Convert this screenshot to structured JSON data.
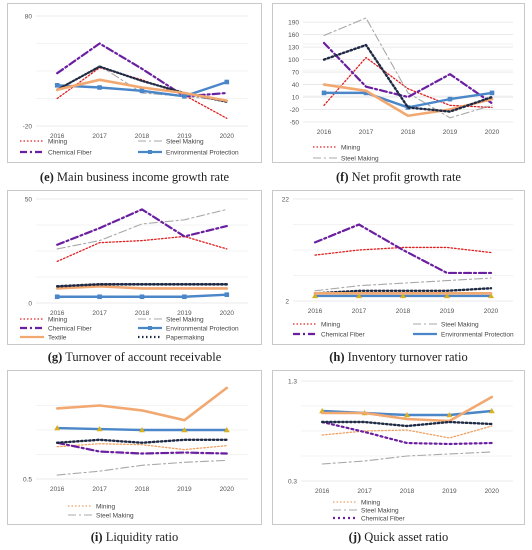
{
  "figure": {
    "panels": [
      {
        "id": "e",
        "letter": "(e)",
        "caption": "Main business income growth rate"
      },
      {
        "id": "f",
        "letter": "(f)",
        "caption": "Net profit growth rate"
      },
      {
        "id": "g",
        "letter": "(g)",
        "caption": "Turnover of account receivable"
      },
      {
        "id": "h",
        "letter": "(h)",
        "caption": "Inventory turnover ratio"
      },
      {
        "id": "i",
        "letter": "(i)",
        "caption": "Liquidity ratio"
      },
      {
        "id": "j",
        "letter": "(j)",
        "caption": "Quick asset ratio"
      }
    ]
  },
  "colors": {
    "Mining": "#e02020",
    "Chemical Fiber": "#6a1fa0",
    "Steel Making": "#a8a8a8",
    "Environmental Protection": "#4a86c8",
    "Textile": "#f2a871",
    "Papermaking": "#1f2a44",
    "Mining_ij": "#f0a060"
  },
  "chart_data": [
    {
      "id": "e",
      "type": "line",
      "x": [
        "2016",
        "2017",
        "2018",
        "2019",
        "2020"
      ],
      "yticks": [
        "80",
        "-20"
      ],
      "ylim": [
        -20,
        80
      ],
      "series": [
        {
          "name": "Mining",
          "values": [
            5,
            33,
            22,
            8,
            -13
          ]
        },
        {
          "name": "Steel Making",
          "values": [
            12,
            35,
            10,
            7,
            3
          ]
        },
        {
          "name": "Chemical Fiber",
          "values": [
            28,
            55,
            32,
            7,
            10
          ]
        },
        {
          "name": "Environmental Protection",
          "values": [
            17,
            15,
            12,
            7,
            20
          ]
        },
        {
          "name": "",
          "values": [
            13,
            34,
            21,
            10,
            2
          ]
        },
        {
          "name": "",
          "values": [
            13,
            22,
            15,
            10,
            3
          ]
        }
      ],
      "legend": [
        "Mining",
        "Steel Making",
        "Chemical Fiber",
        "Environmental Protection"
      ]
    },
    {
      "id": "f",
      "type": "line",
      "x": [
        "2016",
        "2017",
        "2018",
        "2019",
        "2020"
      ],
      "yticks": [
        "190",
        "160",
        "130",
        "100",
        "70",
        "40",
        "10",
        "-20",
        "-50"
      ],
      "ylim": [
        -50,
        200
      ],
      "series": [
        {
          "name": "Mining",
          "values": [
            -10,
            105,
            30,
            -10,
            -15
          ]
        },
        {
          "name": "Steel Making",
          "values": [
            158,
            200,
            20,
            -40,
            -10
          ]
        },
        {
          "name": "",
          "values": [
            140,
            35,
            10,
            65,
            -5
          ]
        },
        {
          "name": "",
          "values": [
            20,
            20,
            -15,
            5,
            20
          ]
        },
        {
          "name": "",
          "values": [
            40,
            25,
            -35,
            -20,
            5
          ]
        },
        {
          "name": "",
          "values": [
            100,
            135,
            -15,
            -25,
            10
          ]
        }
      ],
      "legend": [
        "Mining",
        "Steel Making"
      ]
    },
    {
      "id": "g",
      "type": "line",
      "x": [
        "2016",
        "2017",
        "2018",
        "2019",
        "2020"
      ],
      "yticks": [
        "50",
        "0"
      ],
      "ylim": [
        0,
        50
      ],
      "series": [
        {
          "name": "Mining",
          "values": [
            20,
            29,
            30,
            32,
            26
          ]
        },
        {
          "name": "Steel Making",
          "values": [
            26,
            30,
            38,
            40,
            45
          ]
        },
        {
          "name": "Chemical Fiber",
          "values": [
            28,
            36,
            45,
            32,
            37
          ]
        },
        {
          "name": "Environmental Protection",
          "values": [
            3,
            3,
            3,
            3,
            4
          ]
        },
        {
          "name": "Textile",
          "values": [
            7,
            8,
            7,
            7,
            7
          ]
        },
        {
          "name": "Papermaking",
          "values": [
            8,
            9,
            9,
            9,
            9
          ]
        }
      ],
      "legend": [
        "Mining",
        "Steel Making",
        "Chemical Fiber",
        "Environmental Protection",
        "Textile",
        "Papermaking"
      ]
    },
    {
      "id": "h",
      "type": "line",
      "x": [
        "2016",
        "2017",
        "2018",
        "2019",
        "2020"
      ],
      "yticks": [
        "22",
        "2"
      ],
      "ylim": [
        2,
        22
      ],
      "series": [
        {
          "name": "Mining",
          "values": [
            11,
            12,
            12.5,
            12.5,
            11.5
          ]
        },
        {
          "name": "Steel Making",
          "values": [
            4,
            5,
            5.5,
            6,
            6.5
          ]
        },
        {
          "name": "Chemical Fiber",
          "values": [
            13.5,
            17,
            12,
            7.5,
            7.5
          ]
        },
        {
          "name": "Environmental Protection",
          "values": [
            3,
            3,
            3,
            3,
            3
          ]
        },
        {
          "name": "",
          "values": [
            3.5,
            4,
            4,
            4,
            4.5
          ]
        },
        {
          "name": "",
          "values": [
            3.5,
            3.5,
            3.5,
            3.5,
            3.5
          ]
        }
      ],
      "legend": [
        "Mining",
        "Steel Making",
        "Chemical Fiber",
        "Environmental Protection"
      ]
    },
    {
      "id": "i",
      "type": "line",
      "x": [
        "2016",
        "2017",
        "2018",
        "2019",
        "2020"
      ],
      "yticks": [
        "0.5"
      ],
      "ylim": [
        0.5,
        1.5
      ],
      "series": [
        {
          "name": "Mining",
          "values": [
            0.83,
            0.86,
            0.85,
            0.8,
            0.84
          ]
        },
        {
          "name": "Steel Making",
          "values": [
            0.54,
            0.58,
            0.64,
            0.67,
            0.69
          ]
        },
        {
          "name": "",
          "values": [
            0.87,
            0.78,
            0.76,
            0.77,
            0.76
          ]
        },
        {
          "name": "",
          "values": [
            1.02,
            1.01,
            1.0,
            1.0,
            1.0
          ]
        },
        {
          "name": "",
          "values": [
            1.22,
            1.25,
            1.2,
            1.1,
            1.43
          ]
        },
        {
          "name": "",
          "values": [
            0.87,
            0.9,
            0.87,
            0.9,
            0.9
          ]
        }
      ],
      "legend": [
        "Mining",
        "Steel Making"
      ]
    },
    {
      "id": "j",
      "type": "line",
      "x": [
        "2016",
        "2017",
        "2018",
        "2019",
        "2020"
      ],
      "yticks": [
        "1.3",
        "0.3"
      ],
      "ylim": [
        0.3,
        1.3
      ],
      "series": [
        {
          "name": "Mining",
          "values": [
            0.76,
            0.8,
            0.81,
            0.73,
            0.85
          ]
        },
        {
          "name": "Steel Making",
          "values": [
            0.47,
            0.5,
            0.55,
            0.57,
            0.59
          ]
        },
        {
          "name": "Chemical Fiber",
          "values": [
            0.89,
            0.79,
            0.68,
            0.67,
            0.68
          ]
        },
        {
          "name": "",
          "values": [
            1.0,
            0.98,
            0.96,
            0.96,
            1.0
          ]
        },
        {
          "name": "",
          "values": [
            0.98,
            0.98,
            0.92,
            0.9,
            1.14
          ]
        },
        {
          "name": "",
          "values": [
            0.89,
            0.89,
            0.85,
            0.89,
            0.87
          ]
        }
      ],
      "legend": [
        "Mining",
        "Steel Making",
        "Chemical Fiber"
      ]
    }
  ]
}
